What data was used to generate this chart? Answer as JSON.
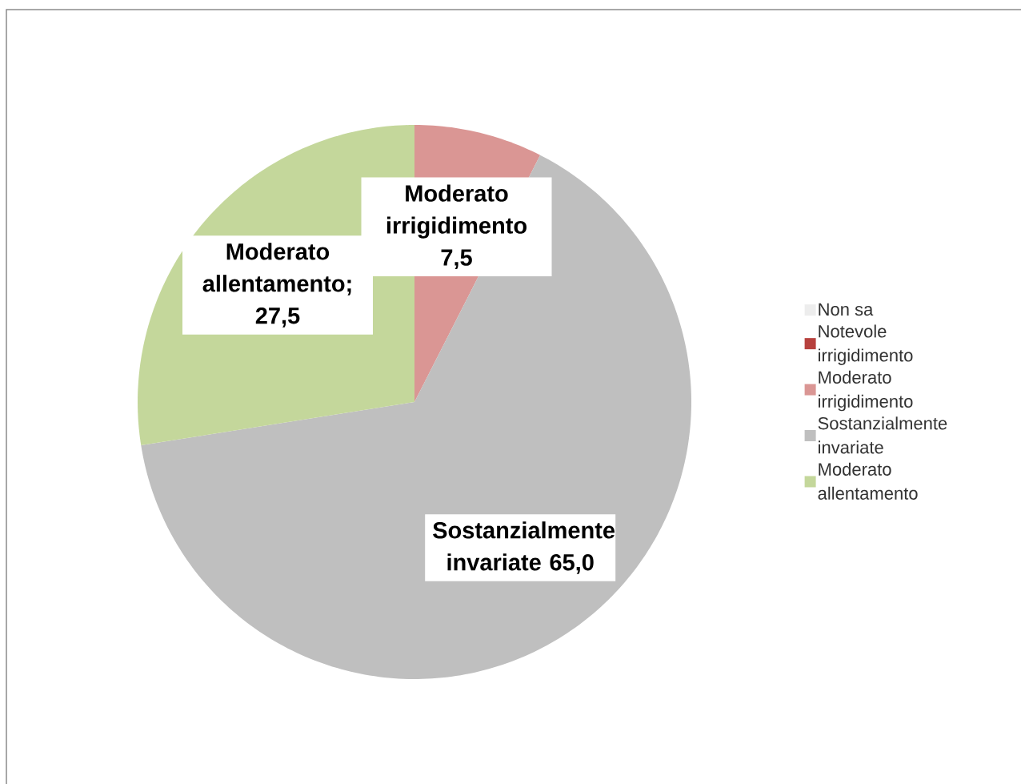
{
  "chart_data": {
    "type": "pie",
    "categories": [
      "Non sa",
      "Notevole irrigidimento",
      "Moderato irrigidimento",
      "Sostanzialmente invariate",
      "Moderato allentamento"
    ],
    "values": [
      0,
      0,
      7.5,
      65.0,
      27.5
    ],
    "colors": [
      "#ededed",
      "#b7413e",
      "#da9694",
      "#bfbfbf",
      "#c4d79b"
    ],
    "value_labels": [
      null,
      null,
      "Moderato irrigidimento 7,5",
      "Sostanzialmente invariate 65,0",
      "Moderato allentamento; 27,5"
    ],
    "legend": "right"
  }
}
